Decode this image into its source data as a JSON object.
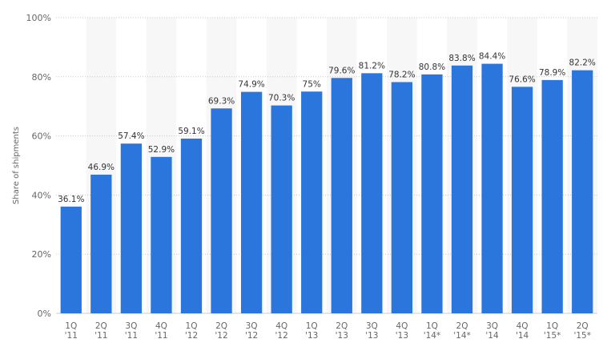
{
  "chart_data": {
    "type": "bar",
    "title": "",
    "xlabel": "",
    "ylabel": "Share of shipments",
    "ylim": [
      0,
      100
    ],
    "yticks": [
      0,
      20,
      40,
      60,
      80,
      100
    ],
    "ytick_suffix": "%",
    "grid": true,
    "bar_color": "#2a76dd",
    "band_color": "#f7f7f7",
    "categories": [
      [
        "1Q",
        "'11"
      ],
      [
        "2Q",
        "'11"
      ],
      [
        "3Q",
        "'11"
      ],
      [
        "4Q",
        "'11"
      ],
      [
        "1Q",
        "'12"
      ],
      [
        "2Q",
        "'12"
      ],
      [
        "3Q",
        "'12"
      ],
      [
        "4Q",
        "'12"
      ],
      [
        "1Q",
        "'13"
      ],
      [
        "2Q",
        "'13"
      ],
      [
        "3Q",
        "'13"
      ],
      [
        "4Q",
        "'13"
      ],
      [
        "1Q",
        "'14*"
      ],
      [
        "2Q",
        "'14*"
      ],
      [
        "3Q",
        "'14"
      ],
      [
        "4Q",
        "'14"
      ],
      [
        "1Q",
        "'15*"
      ],
      [
        "2Q",
        "'15*"
      ]
    ],
    "values": [
      36.1,
      46.9,
      57.4,
      52.9,
      59.1,
      69.3,
      74.9,
      70.3,
      75,
      79.6,
      81.2,
      78.2,
      80.8,
      83.8,
      84.4,
      76.6,
      78.9,
      82.2
    ],
    "value_labels": [
      "36.1%",
      "46.9%",
      "57.4%",
      "52.9%",
      "59.1%",
      "69.3%",
      "74.9%",
      "70.3%",
      "75%",
      "79.6%",
      "81.2%",
      "78.2%",
      "80.8%",
      "83.8%",
      "84.4%",
      "76.6%",
      "78.9%",
      "82.2%"
    ]
  }
}
